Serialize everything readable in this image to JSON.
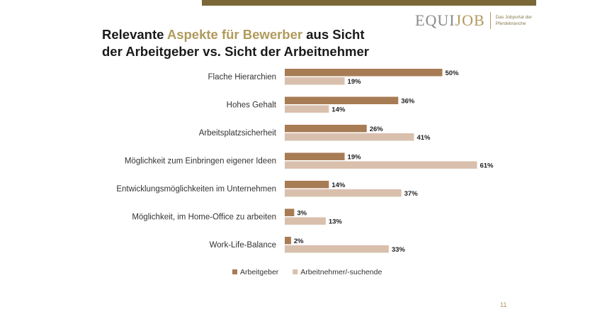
{
  "header": {
    "logo_part1": "EQUI",
    "logo_part2": "JOB",
    "logo_tagline_line1": "Das Jobportal der",
    "logo_tagline_line2": "Pferdebranche"
  },
  "title": {
    "line1_part1": "Relevante ",
    "line1_accent": "Aspekte für Bewerber",
    "line1_part2": " aus Sicht",
    "line2": "der Arbeitgeber vs. Sicht der Arbeitnehmer"
  },
  "colors": {
    "series1": "#a77c55",
    "series2": "#d9c0ad",
    "accent": "#b09a5c",
    "top_bar": "#7a6838"
  },
  "chart_data": {
    "type": "bar",
    "orientation": "horizontal",
    "categories": [
      "Flache Hierarchien",
      "Hohes Gehalt",
      "Arbeitsplatzsicherheit",
      "Möglichkeit zum Einbringen eigener Ideen",
      "Entwicklungsmöglichkeiten im Unternehmen",
      "Möglichkeit, im Home-Office zu arbeiten",
      "Work-Life-Balance"
    ],
    "series": [
      {
        "name": "Arbeitgeber",
        "values": [
          50,
          36,
          26,
          19,
          14,
          3,
          2
        ]
      },
      {
        "name": "Arbeitnehmer/-suchende",
        "values": [
          19,
          14,
          41,
          61,
          37,
          13,
          33
        ]
      }
    ],
    "value_suffix": "%",
    "xlim": [
      0,
      70
    ],
    "grid": false,
    "legend_position": "bottom"
  },
  "footer": {
    "page_number": "11"
  }
}
